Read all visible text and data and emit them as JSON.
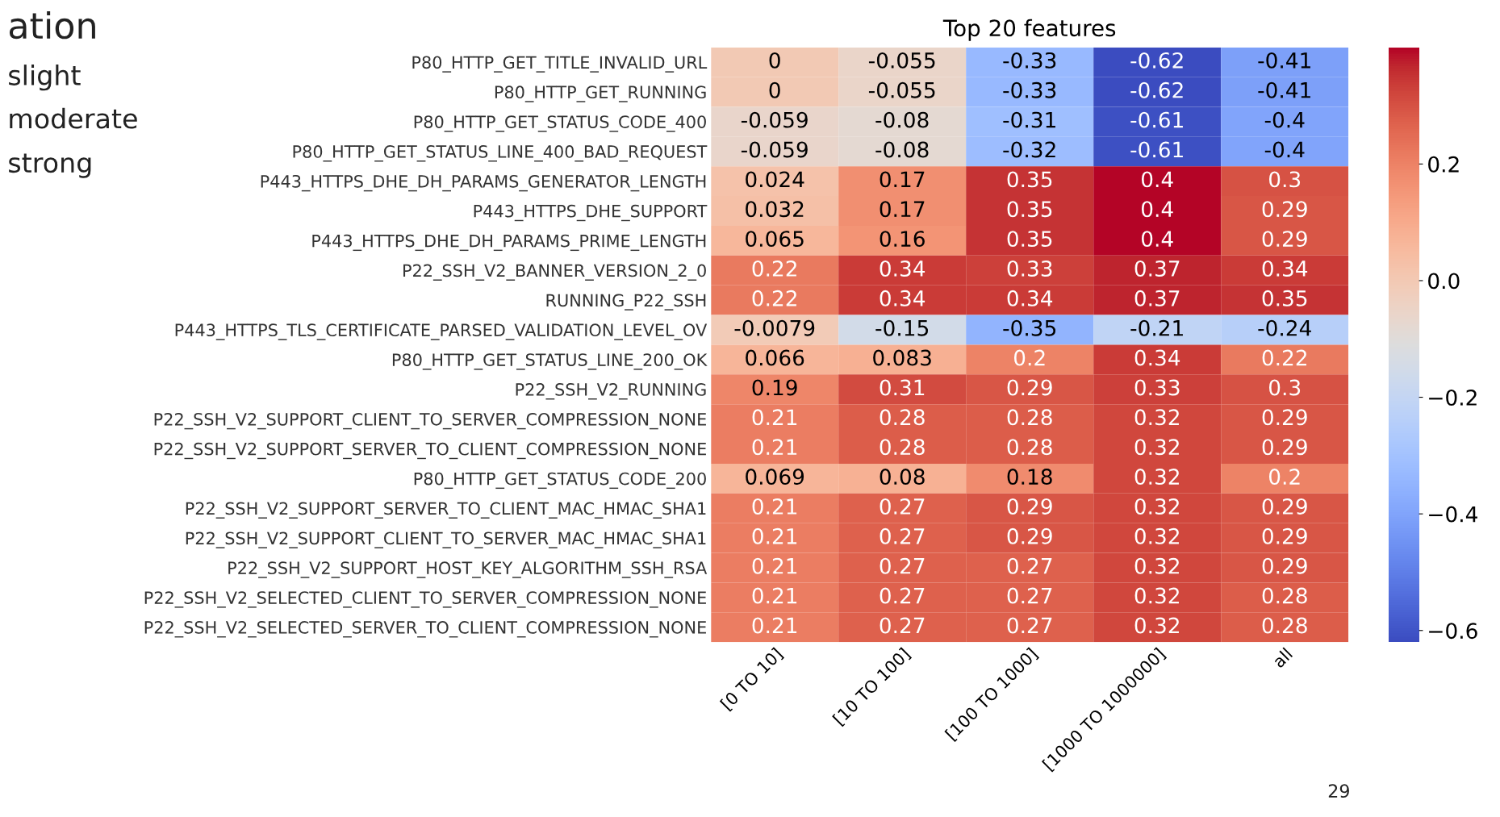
{
  "chart_data": {
    "type": "heatmap",
    "title": "Top 20 features",
    "categories": [
      "[0 TO 10]",
      "[10 TO 100]",
      "[100 TO 1000]",
      "[1000 TO 1000000]",
      "all"
    ],
    "y_categories": [
      "P80_HTTP_GET_TITLE_INVALID_URL",
      "P80_HTTP_GET_RUNNING",
      "P80_HTTP_GET_STATUS_CODE_400",
      "P80_HTTP_GET_STATUS_LINE_400_BAD_REQUEST",
      "P443_HTTPS_DHE_DH_PARAMS_GENERATOR_LENGTH",
      "P443_HTTPS_DHE_SUPPORT",
      "P443_HTTPS_DHE_DH_PARAMS_PRIME_LENGTH",
      "P22_SSH_V2_BANNER_VERSION_2_0",
      "RUNNING_P22_SSH",
      "P443_HTTPS_TLS_CERTIFICATE_PARSED_VALIDATION_LEVEL_OV",
      "P80_HTTP_GET_STATUS_LINE_200_OK",
      "P22_SSH_V2_RUNNING",
      "P22_SSH_V2_SUPPORT_CLIENT_TO_SERVER_COMPRESSION_NONE",
      "P22_SSH_V2_SUPPORT_SERVER_TO_CLIENT_COMPRESSION_NONE",
      "P80_HTTP_GET_STATUS_CODE_200",
      "P22_SSH_V2_SUPPORT_SERVER_TO_CLIENT_MAC_HMAC_SHA1",
      "P22_SSH_V2_SUPPORT_CLIENT_TO_SERVER_MAC_HMAC_SHA1",
      "P22_SSH_V2_SUPPORT_HOST_KEY_ALGORITHM_SSH_RSA",
      "P22_SSH_V2_SELECTED_CLIENT_TO_SERVER_COMPRESSION_NONE",
      "P22_SSH_V2_SELECTED_SERVER_TO_CLIENT_COMPRESSION_NONE"
    ],
    "cells": [
      [
        0,
        -0.055,
        -0.33,
        -0.62,
        -0.41
      ],
      [
        0,
        -0.055,
        -0.33,
        -0.62,
        -0.41
      ],
      [
        -0.059,
        -0.08,
        -0.31,
        -0.61,
        -0.4
      ],
      [
        -0.059,
        -0.08,
        -0.32,
        -0.61,
        -0.4
      ],
      [
        0.024,
        0.17,
        0.35,
        0.4,
        0.3
      ],
      [
        0.032,
        0.17,
        0.35,
        0.4,
        0.29
      ],
      [
        0.065,
        0.16,
        0.35,
        0.4,
        0.29
      ],
      [
        0.22,
        0.34,
        0.33,
        0.37,
        0.34
      ],
      [
        0.22,
        0.34,
        0.34,
        0.37,
        0.35
      ],
      [
        -0.0079,
        -0.15,
        -0.35,
        -0.21,
        -0.24
      ],
      [
        0.066,
        0.083,
        0.2,
        0.34,
        0.22
      ],
      [
        0.19,
        0.31,
        0.29,
        0.33,
        0.3
      ],
      [
        0.21,
        0.28,
        0.28,
        0.32,
        0.29
      ],
      [
        0.21,
        0.28,
        0.28,
        0.32,
        0.29
      ],
      [
        0.069,
        0.08,
        0.18,
        0.32,
        0.2
      ],
      [
        0.21,
        0.27,
        0.29,
        0.32,
        0.29
      ],
      [
        0.21,
        0.27,
        0.29,
        0.32,
        0.29
      ],
      [
        0.21,
        0.27,
        0.27,
        0.32,
        0.29
      ],
      [
        0.21,
        0.27,
        0.27,
        0.32,
        0.28
      ],
      [
        0.21,
        0.27,
        0.27,
        0.32,
        0.28
      ]
    ],
    "data_labels": true,
    "clim": [
      -0.62,
      0.4
    ],
    "cticks": [
      {
        "value": -0.6,
        "label": "−0.6"
      },
      {
        "value": -0.4,
        "label": "−0.4"
      },
      {
        "value": -0.2,
        "label": "−0.2"
      },
      {
        "value": 0.0,
        "label": "0.0"
      },
      {
        "value": 0.2,
        "label": "0.2"
      }
    ],
    "annotations": [
      "ation",
      "slight",
      "moderate",
      "strong",
      "29"
    ]
  }
}
